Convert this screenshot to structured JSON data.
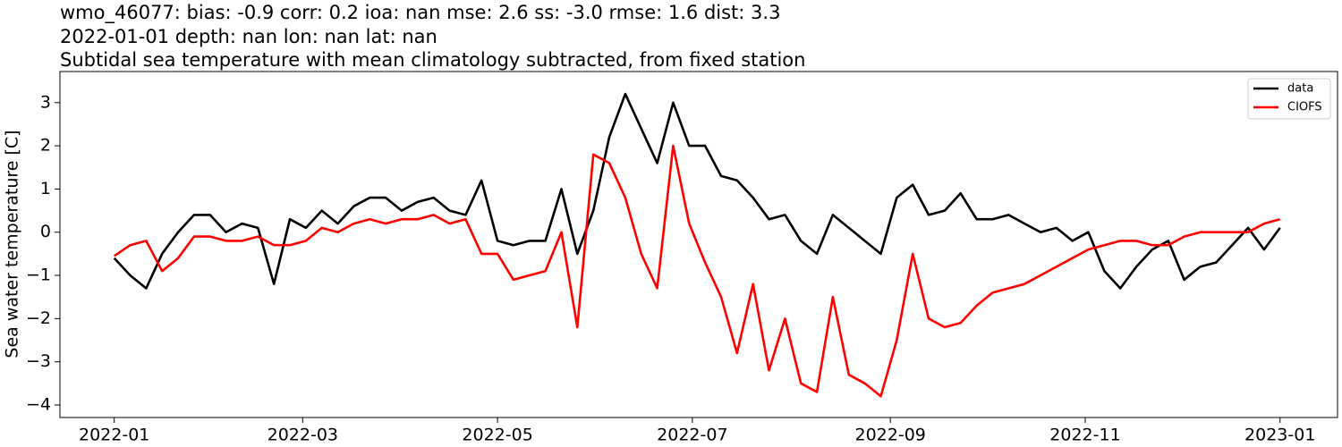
{
  "chart_data": {
    "type": "line",
    "title_lines": [
      "wmo_46077: bias: -0.9  corr: 0.2  ioa: nan  mse: 2.6  ss: -3.0  rmse: 1.6  dist: 3.3",
      "2022-01-01 depth: nan lon: nan lat: nan",
      "Subtidal sea temperature with mean climatology subtracted, from fixed station"
    ],
    "ylabel": "Sea water temperature [C]",
    "x": [
      0,
      5,
      10,
      15,
      20,
      25,
      30,
      35,
      40,
      45,
      50,
      55,
      60,
      65,
      70,
      75,
      80,
      85,
      90,
      95,
      100,
      105,
      110,
      115,
      120,
      125,
      130,
      135,
      140,
      145,
      150,
      155,
      160,
      165,
      170,
      175,
      180,
      185,
      190,
      195,
      200,
      205,
      210,
      215,
      220,
      225,
      230,
      235,
      240,
      245,
      250,
      255,
      260,
      265,
      270,
      275,
      280,
      285,
      290,
      295,
      300,
      305,
      310,
      315,
      320,
      325,
      330,
      335,
      340,
      345,
      350,
      355,
      360,
      365
    ],
    "series": [
      {
        "name": "data",
        "color": "#000000",
        "values": [
          -0.6,
          -1.0,
          -1.3,
          -0.5,
          0.0,
          0.4,
          0.4,
          0.0,
          0.2,
          0.1,
          -1.2,
          0.3,
          0.1,
          0.5,
          0.2,
          0.6,
          0.8,
          0.8,
          0.5,
          0.7,
          0.8,
          0.5,
          0.4,
          1.2,
          -0.2,
          -0.3,
          -0.2,
          -0.2,
          1.0,
          -0.5,
          0.5,
          2.2,
          3.2,
          2.4,
          1.6,
          3.0,
          2.0,
          2.0,
          1.3,
          1.2,
          0.8,
          0.3,
          0.4,
          -0.2,
          -0.5,
          0.4,
          0.1,
          -0.2,
          -0.5,
          0.8,
          1.1,
          0.4,
          0.5,
          0.9,
          0.3,
          0.3,
          0.4,
          0.2,
          0.0,
          0.1,
          -0.2,
          0.0,
          -0.9,
          -1.3,
          -0.8,
          -0.4,
          -0.2,
          -1.1,
          -0.8,
          -0.7,
          -0.3,
          0.1,
          -0.4,
          0.1
        ]
      },
      {
        "name": "CIOFS",
        "color": "#ff0000",
        "values": [
          -0.55,
          -0.3,
          -0.2,
          -0.9,
          -0.6,
          -0.1,
          -0.1,
          -0.2,
          -0.2,
          -0.1,
          -0.3,
          -0.3,
          -0.2,
          0.1,
          0.0,
          0.2,
          0.3,
          0.2,
          0.3,
          0.3,
          0.4,
          0.2,
          0.3,
          -0.5,
          -0.5,
          -1.1,
          -1.0,
          -0.9,
          0.0,
          -2.2,
          1.8,
          1.6,
          0.8,
          -0.5,
          -1.3,
          2.0,
          0.2,
          -0.7,
          -1.5,
          -2.8,
          -1.2,
          -3.2,
          -2.0,
          -3.5,
          -3.7,
          -1.5,
          -3.3,
          -3.5,
          -3.8,
          -2.5,
          -0.5,
          -2.0,
          -2.2,
          -2.1,
          -1.7,
          -1.4,
          -1.3,
          -1.2,
          -1.0,
          -0.8,
          -0.6,
          -0.4,
          -0.3,
          -0.2,
          -0.2,
          -0.3,
          -0.3,
          -0.1,
          0.0,
          0.0,
          0.0,
          0.0,
          0.2,
          0.3
        ]
      }
    ],
    "xlim": [
      -17,
      383
    ],
    "xticks": [
      {
        "value": 0,
        "label": "2022-01"
      },
      {
        "value": 59,
        "label": "2022-03"
      },
      {
        "value": 120,
        "label": "2022-05"
      },
      {
        "value": 181,
        "label": "2022-07"
      },
      {
        "value": 243,
        "label": "2022-09"
      },
      {
        "value": 304,
        "label": "2022-11"
      },
      {
        "value": 365,
        "label": "2023-01"
      }
    ],
    "ylim": [
      -4.29,
      3.72
    ],
    "yticks": [
      {
        "value": -4,
        "label": "−4"
      },
      {
        "value": -3,
        "label": "−3"
      },
      {
        "value": -2,
        "label": "−2"
      },
      {
        "value": -1,
        "label": "−1"
      },
      0,
      1,
      2,
      3
    ],
    "legend": "upper right"
  }
}
